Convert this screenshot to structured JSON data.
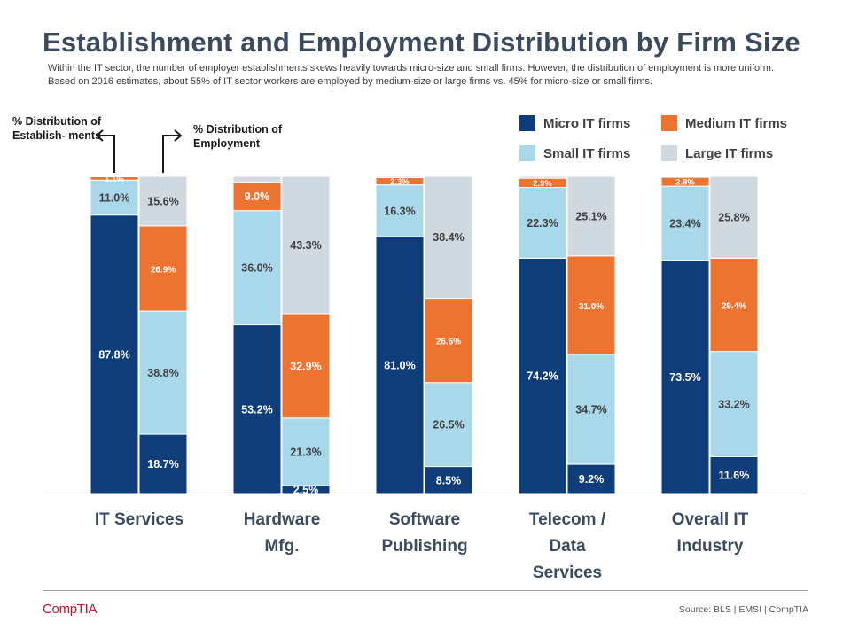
{
  "title": "Establishment and Employment Distribution by Firm Size",
  "subtitle": "Within the IT sector, the number of employer establishments skews heavily towards micro-size and small firms. However, the distribution of employment is more uniform. Based on 2016 estimates, about 55% of IT sector workers are employed by medium-size or large firms vs. 45% for micro-size or small firms.",
  "annotations": {
    "establishments": "% Distribution of Establish- ments",
    "employment": "% Distribution of Employment"
  },
  "legend": [
    {
      "label": "Micro IT firms",
      "color": "#0f3d7a"
    },
    {
      "label": "Medium IT firms",
      "color": "#ed7330"
    },
    {
      "label": "Small IT firms",
      "color": "#a9d8ea"
    },
    {
      "label": "Large IT firms",
      "color": "#d1d9e0"
    }
  ],
  "footer": {
    "logo": "CompTIA",
    "source": "Source: BLS | EMSI | CompTIA"
  },
  "chart_data": {
    "type": "bar",
    "stacked": true,
    "ylim": [
      0,
      100
    ],
    "categories": [
      "IT Services",
      "Hardware Mfg.",
      "Software Publishing",
      "Telecom / Data Services",
      "Overall IT Industry"
    ],
    "category_lines": [
      [
        "IT Services"
      ],
      [
        "Hardware",
        "Mfg."
      ],
      [
        "Software",
        "Publishing"
      ],
      [
        "Telecom /",
        "Data",
        "Services"
      ],
      [
        "Overall IT",
        "Industry"
      ]
    ],
    "stack_order": [
      "Micro IT firms",
      "Small IT firms",
      "Medium IT firms",
      "Large IT firms"
    ],
    "bars": [
      {
        "category": "IT Services",
        "measure": "Establishments",
        "values": [
          87.8,
          11.0,
          1.1,
          0.1
        ]
      },
      {
        "category": "IT Services",
        "measure": "Employment",
        "values": [
          18.7,
          38.8,
          26.9,
          15.6
        ]
      },
      {
        "category": "Hardware Mfg.",
        "measure": "Establishments",
        "values": [
          53.2,
          36.0,
          9.0,
          1.8
        ]
      },
      {
        "category": "Hardware Mfg.",
        "measure": "Employment",
        "values": [
          2.5,
          21.3,
          32.9,
          43.3
        ]
      },
      {
        "category": "Software Publishing",
        "measure": "Establishments",
        "values": [
          81.0,
          16.3,
          2.3,
          0.4
        ]
      },
      {
        "category": "Software Publishing",
        "measure": "Employment",
        "values": [
          8.5,
          26.5,
          26.6,
          38.4
        ]
      },
      {
        "category": "Telecom / Data Services",
        "measure": "Establishments",
        "values": [
          74.2,
          22.3,
          2.9,
          0.6
        ]
      },
      {
        "category": "Telecom / Data Services",
        "measure": "Employment",
        "values": [
          9.2,
          34.7,
          31.0,
          25.1
        ]
      },
      {
        "category": "Overall IT Industry",
        "measure": "Establishments",
        "values": [
          73.5,
          23.4,
          2.8,
          0.3
        ]
      },
      {
        "category": "Overall IT Industry",
        "measure": "Employment",
        "values": [
          11.6,
          33.2,
          29.4,
          25.8
        ]
      }
    ],
    "labels": [
      [
        "87.8%",
        "11.0%",
        "1.1%",
        ""
      ],
      [
        "18.7%",
        "38.8%",
        "26.9%",
        "15.6%"
      ],
      [
        "53.2%",
        "36.0%",
        "9.0%",
        ""
      ],
      [
        "2.5%",
        "21.3%",
        "32.9%",
        "43.3%"
      ],
      [
        "81.0%",
        "16.3%",
        "2.3%",
        ""
      ],
      [
        "8.5%",
        "26.5%",
        "26.6%",
        "38.4%"
      ],
      [
        "74.2%",
        "22.3%",
        "2.9%",
        ""
      ],
      [
        "9.2%",
        "34.7%",
        "31.0%",
        "25.1%"
      ],
      [
        "73.5%",
        "23.4%",
        "2.8%",
        ""
      ],
      [
        "11.6%",
        "33.2%",
        "29.4%",
        "25.8%"
      ]
    ],
    "colors": [
      "#0f3d7a",
      "#a9d8ea",
      "#ed7330",
      "#d1d9e0"
    ],
    "label_colors": [
      "#ffffff",
      "#404040",
      "#ffffff",
      "#404040"
    ]
  }
}
